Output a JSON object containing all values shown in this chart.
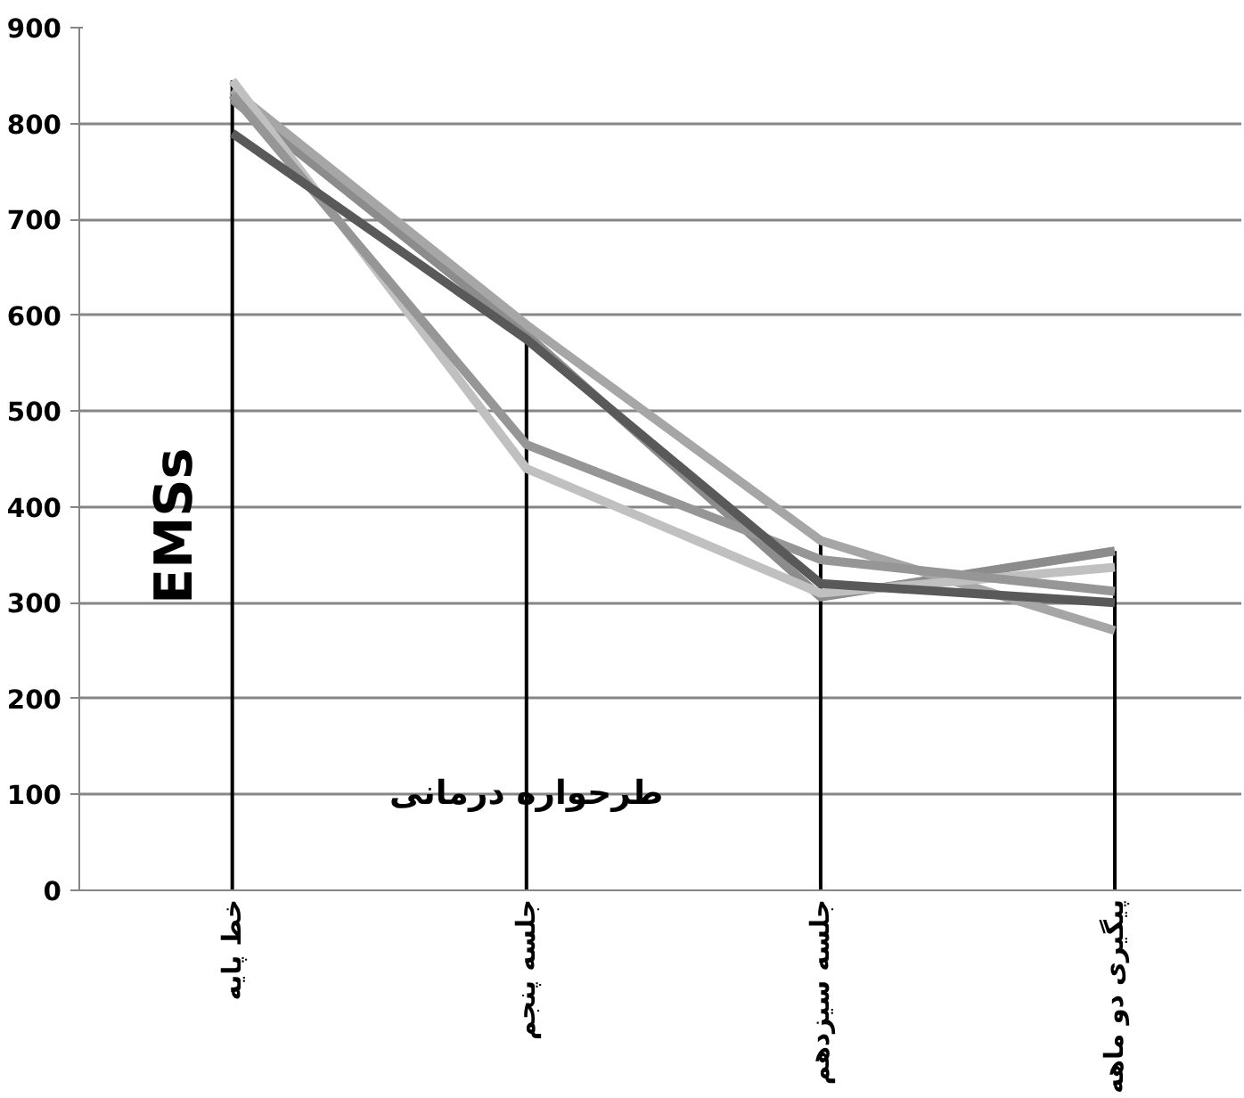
{
  "chart_data": {
    "type": "line",
    "xlabel": "طرحواره درمانی",
    "ylabel": "EMSs",
    "categories": [
      "خط پایه",
      "جلسه پنجم",
      "جلسه سیزدهم",
      "پیگیری دو ماهه"
    ],
    "series": [
      {
        "color": "#595959",
        "values": [
          790,
          575,
          320,
          300
        ]
      },
      {
        "color": "#969696",
        "values": [
          830,
          465,
          345,
          312
        ]
      },
      {
        "color": "#c0c0c0",
        "values": [
          845,
          440,
          310,
          337
        ]
      },
      {
        "color": "#a6a6a6",
        "values": [
          835,
          590,
          365,
          271
        ]
      },
      {
        "color": "#8c8c8c",
        "values": [
          825,
          580,
          306,
          354
        ]
      }
    ],
    "ylim": [
      0,
      900
    ],
    "yticks": [
      0,
      100,
      200,
      300,
      400,
      500,
      600,
      700,
      800,
      900
    ],
    "ref_lines": [
      {
        "axis": "x",
        "value": "خط پایه",
        "color": "#000000"
      },
      {
        "axis": "x",
        "value": "جلسه پنجم",
        "color": "#000000"
      },
      {
        "axis": "x",
        "value": "جلسه سیزدهم",
        "color": "#000000"
      },
      {
        "axis": "x",
        "value": "پیگیری دو ماهه",
        "color": "#000000"
      }
    ],
    "grid": "y",
    "line_style": "solid"
  }
}
